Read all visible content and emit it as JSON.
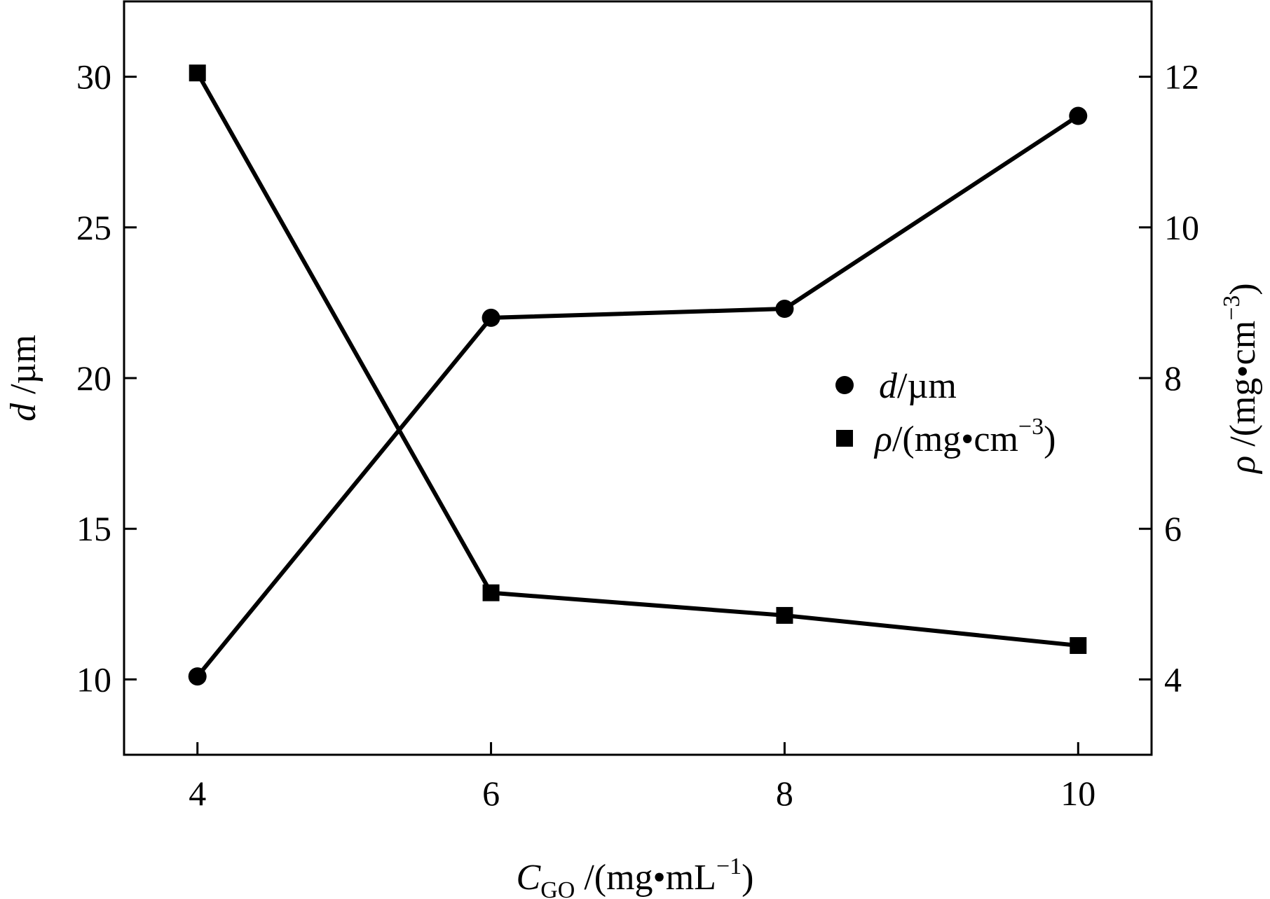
{
  "chart_data": {
    "type": "line",
    "x": [
      4,
      6,
      8,
      10
    ],
    "xlim": [
      3.5,
      10.5
    ],
    "ylim_left": [
      7.5,
      32.5
    ],
    "ylim_right": [
      3,
      13
    ],
    "x_ticks": [
      "4",
      "6",
      "8",
      "10"
    ],
    "y_left_ticks": [
      "10",
      "15",
      "20",
      "25",
      "30"
    ],
    "y_right_ticks": [
      "4",
      "6",
      "8",
      "10",
      "12"
    ],
    "xlabel": {
      "main": "C",
      "sub": "GO",
      "unit": " /(mg•mL",
      "sup": "−1",
      "close": ")"
    },
    "ylabel_left": {
      "main": "d",
      "unit": " /µm"
    },
    "ylabel_right": {
      "main": "ρ",
      "unit": " /(mg•cm",
      "sup": "−3",
      "close": ")"
    },
    "series": [
      {
        "name": "d/µm",
        "marker": "circle",
        "axis": "left",
        "values": [
          10.1,
          22.0,
          22.3,
          28.7
        ]
      },
      {
        "name": "ρ/(mg•cm−3)",
        "marker": "square",
        "axis": "right",
        "values": [
          12.05,
          5.15,
          4.85,
          4.45
        ]
      }
    ],
    "legend": {
      "position": "center-right",
      "entries": [
        {
          "main": "d",
          "unit": "/µm"
        },
        {
          "main": "ρ",
          "unit": "/(mg•cm",
          "sup": "−3",
          "close": ")"
        }
      ]
    },
    "grid": false,
    "color": "#000000"
  }
}
